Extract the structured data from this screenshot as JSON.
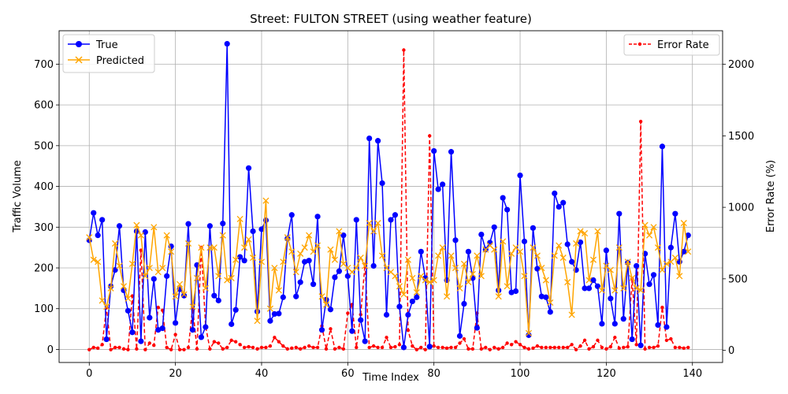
{
  "chart_data": {
    "type": "line",
    "title": "Street: FULTON STREET (using weather feature)",
    "xlabel": "Time Index",
    "ylabel": "Traffic Volume",
    "ylabel_right": "Error Rate (%)",
    "xlim": [
      -7,
      147
    ],
    "ylim": [
      -32,
      782
    ],
    "ylim_right": [
      -85,
      2235
    ],
    "xticks": [
      0,
      20,
      40,
      60,
      80,
      100,
      120,
      140
    ],
    "yticks": [
      0,
      100,
      200,
      300,
      400,
      500,
      600,
      700
    ],
    "yticks_right": [
      0,
      500,
      1000,
      1500,
      2000
    ],
    "grid": true,
    "legend_left": "upper-left",
    "legend_right": "upper-right",
    "colors": {
      "true": "#0000ff",
      "predicted": "#ffa500",
      "error": "#ff0000"
    },
    "series": [
      {
        "name": "True",
        "axis": "left",
        "marker": "circle",
        "line": "solid",
        "values": [
          268,
          335,
          280,
          318,
          25,
          155,
          195,
          303,
          145,
          95,
          42,
          290,
          20,
          288,
          78,
          173,
          48,
          52,
          180,
          253,
          65,
          148,
          132,
          308,
          48,
          207,
          30,
          55,
          303,
          132,
          120,
          309,
          750,
          62,
          97,
          227,
          218,
          445,
          290,
          93,
          295,
          317,
          70,
          87,
          88,
          128,
          272,
          330,
          130,
          165,
          215,
          218,
          160,
          326,
          48,
          122,
          98,
          177,
          192,
          280,
          180,
          45,
          318,
          72,
          20,
          518,
          205,
          512,
          408,
          85,
          318,
          330,
          105,
          5,
          85,
          118,
          128,
          240,
          175,
          7,
          487,
          393,
          405,
          170,
          485,
          268,
          33,
          112,
          240,
          175,
          53,
          282,
          245,
          262,
          300,
          145,
          372,
          343,
          140,
          143,
          427,
          265,
          35,
          298,
          198,
          130,
          128,
          92,
          383,
          350,
          360,
          258,
          215,
          195,
          263,
          150,
          150,
          170,
          155,
          63,
          243,
          125,
          63,
          333,
          75,
          213,
          25,
          205,
          10,
          235,
          160,
          183,
          60,
          498,
          55,
          250,
          333,
          215,
          240,
          280
        ]
      },
      {
        "name": "Predicted",
        "axis": "left",
        "marker": "x",
        "line": "solid",
        "values": [
          275,
          220,
          215,
          120,
          105,
          150,
          260,
          205,
          155,
          125,
          210,
          305,
          280,
          180,
          200,
          300,
          190,
          200,
          280,
          240,
          130,
          160,
          135,
          260,
          105,
          175,
          250,
          150,
          250,
          250,
          180,
          280,
          170,
          175,
          220,
          320,
          250,
          270,
          225,
          70,
          215,
          365,
          100,
          200,
          145,
          215,
          275,
          240,
          190,
          235,
          250,
          280,
          240,
          255,
          130,
          110,
          245,
          220,
          290,
          210,
          200,
          190,
          200,
          225,
          205,
          310,
          290,
          310,
          230,
          200,
          190,
          180,
          155,
          135,
          220,
          175,
          140,
          180,
          170,
          165,
          170,
          230,
          250,
          130,
          230,
          200,
          150,
          210,
          165,
          185,
          230,
          180,
          245,
          255,
          245,
          130,
          265,
          155,
          235,
          250,
          240,
          180,
          40,
          250,
          230,
          200,
          170,
          115,
          230,
          255,
          225,
          165,
          85,
          260,
          290,
          285,
          170,
          220,
          290,
          145,
          205,
          195,
          145,
          250,
          150,
          215,
          175,
          150,
          145,
          305,
          280,
          300,
          250,
          195,
          210,
          215,
          225,
          180,
          310,
          240
        ]
      },
      {
        "name": "Error Rate",
        "axis": "right",
        "marker": "dot",
        "line": "dashed",
        "values": [
          5,
          20,
          15,
          40,
          300,
          5,
          20,
          20,
          10,
          5,
          380,
          10,
          700,
          5,
          50,
          35,
          300,
          280,
          20,
          5,
          110,
          5,
          5,
          20,
          300,
          10,
          720,
          170,
          10,
          60,
          50,
          10,
          20,
          70,
          60,
          40,
          20,
          25,
          20,
          10,
          20,
          20,
          30,
          90,
          60,
          30,
          10,
          15,
          20,
          10,
          20,
          30,
          20,
          20,
          170,
          10,
          150,
          10,
          20,
          10,
          260,
          320,
          20,
          250,
          600,
          20,
          30,
          20,
          20,
          90,
          20,
          25,
          40,
          2100,
          140,
          30,
          5,
          20,
          5,
          1500,
          30,
          20,
          20,
          15,
          20,
          20,
          50,
          80,
          10,
          10,
          260,
          10,
          20,
          5,
          20,
          10,
          20,
          50,
          40,
          60,
          40,
          20,
          10,
          15,
          30,
          20,
          20,
          20,
          20,
          20,
          20,
          20,
          40,
          5,
          30,
          70,
          10,
          25,
          70,
          20,
          10,
          25,
          90,
          15,
          20,
          25,
          500,
          40,
          1600,
          10,
          20,
          20,
          30,
          300,
          70,
          80,
          20,
          20,
          15,
          20
        ]
      }
    ]
  }
}
